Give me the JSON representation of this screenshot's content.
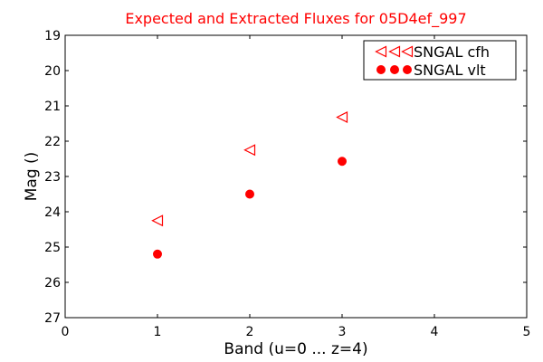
{
  "chart_data": {
    "type": "scatter",
    "title": "Expected and Extracted Fluxes for 05D4ef_997",
    "xlabel": "Band (u=0 ... z=4)",
    "ylabel": "Mag ()",
    "xlim": [
      0,
      5
    ],
    "ylim": [
      27,
      19
    ],
    "y_inverted": true,
    "x_ticks": [
      "0",
      "1",
      "2",
      "3",
      "4",
      "5"
    ],
    "y_ticks": [
      "19",
      "20",
      "21",
      "22",
      "23",
      "24",
      "25",
      "26",
      "27"
    ],
    "grid": false,
    "legend_position": "top-right",
    "series": [
      {
        "name": "SNGAL cfh",
        "marker": "triangle-left-open",
        "color": "#ff0000",
        "points": [
          {
            "x": 1,
            "y": 24.25
          },
          {
            "x": 2,
            "y": 22.25
          },
          {
            "x": 3,
            "y": 21.32
          }
        ]
      },
      {
        "name": "SNGAL vlt",
        "marker": "circle-filled",
        "color": "#ff0000",
        "points": [
          {
            "x": 1,
            "y": 25.2
          },
          {
            "x": 2,
            "y": 23.5
          },
          {
            "x": 3,
            "y": 22.57
          }
        ]
      }
    ]
  }
}
